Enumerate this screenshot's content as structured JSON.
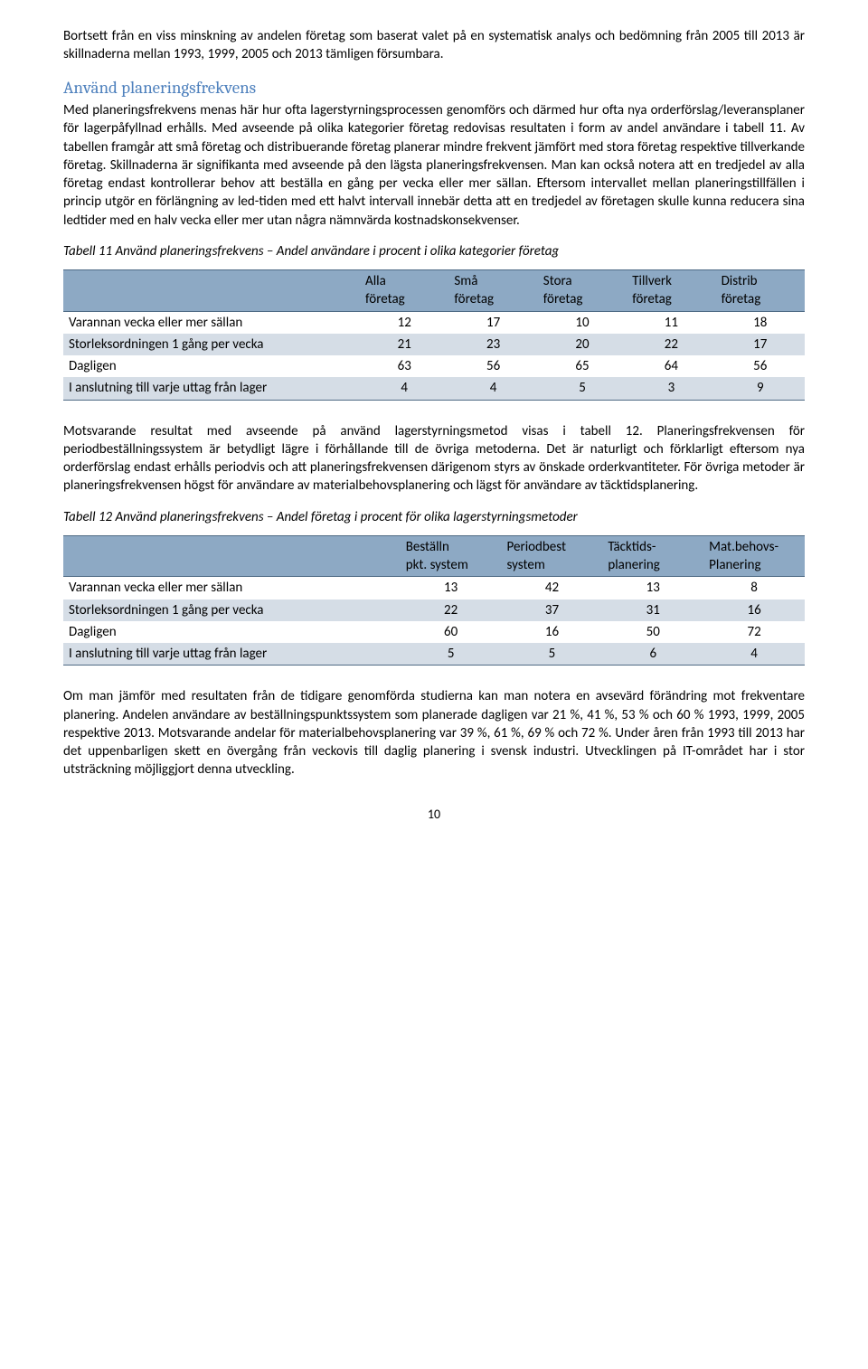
{
  "para_intro": "Bortsett från en viss minskning av andelen företag som baserat valet på en systematisk analys och bedömning från 2005 till 2013 är skillnaderna mellan 1993, 1999, 2005 och 2013 tämligen försumbara.",
  "heading1": "Använd planeringsfrekvens",
  "para1": "Med planeringsfrekvens menas här hur ofta lagerstyrningsprocessen genomförs och därmed hur ofta nya orderförslag/leveransplaner för lagerpåfyllnad erhålls. Med avseende på olika kategorier företag redovisas resultaten i form av andel användare i tabell 11. Av tabellen framgår att små företag och distribuerande företag planerar mindre frekvent jämfört med stora företag respektive tillverkande företag. Skillnaderna är signifikanta med avseende på den lägsta planeringsfrekvensen. Man kan också notera att en tredjedel av alla företag endast kontrollerar behov att beställa en gång per vecka eller mer sällan. Eftersom intervallet mellan planeringstillfällen i princip utgör en förlängning av led-tiden med ett halvt intervall innebär detta att en tredjedel av företagen skulle kunna reducera sina ledtider med en halv vecka eller mer utan några nämnvärda kostnadskonsekvenser.",
  "table11": {
    "caption": "Tabell 11 Använd planeringsfrekvens – Andel användare i procent i olika kategorier företag",
    "headers": {
      "c0": "",
      "c1a": "Alla",
      "c1b": "företag",
      "c2a": "Små",
      "c2b": "företag",
      "c3a": "Stora",
      "c3b": "företag",
      "c4a": "Tillverk",
      "c4b": "företag",
      "c5a": "Distrib",
      "c5b": "företag"
    },
    "rows": [
      {
        "label": "Varannan vecka eller mer sällan",
        "v": [
          "12",
          "17",
          "10",
          "11",
          "18"
        ]
      },
      {
        "label": "Storleksordningen 1 gång per vecka",
        "v": [
          "21",
          "23",
          "20",
          "22",
          "17"
        ]
      },
      {
        "label": "Dagligen",
        "v": [
          "63",
          "56",
          "65",
          "64",
          "56"
        ]
      },
      {
        "label": "I anslutning till varje uttag från lager",
        "v": [
          "4",
          "4",
          "5",
          "3",
          "9"
        ]
      }
    ],
    "header_bg": "#8da9c4",
    "row_odd_bg": "#d5dde6",
    "row_even_bg": "#ffffff",
    "border_color": "#4f6b85"
  },
  "para2": "Motsvarande resultat med avseende på använd lagerstyrningsmetod visas i tabell 12. Planeringsfrekvensen för periodbeställningssystem är betydligt lägre i förhållande till de övriga metoderna. Det är naturligt och förklarligt eftersom nya orderförslag endast erhålls periodvis och att planeringsfrekvensen därigenom styrs av önskade orderkvantiteter. För övriga metoder är planeringsfrekvensen högst för användare av materialbehovsplanering och lägst för användare av täcktidsplanering.",
  "table12": {
    "caption": "Tabell 12 Använd planeringsfrekvens – Andel företag i procent för olika lagerstyrningsmetoder",
    "headers": {
      "c0": "",
      "c1a": "Beställn",
      "c1b": "pkt. system",
      "c2a": "Periodbest",
      "c2b": "system",
      "c3a": "Täcktids-",
      "c3b": "planering",
      "c4a": "Mat.behovs-",
      "c4b": "Planering"
    },
    "rows": [
      {
        "label": "Varannan vecka eller mer sällan",
        "v": [
          "13",
          "42",
          "13",
          "8"
        ]
      },
      {
        "label": "Storleksordningen 1 gång per vecka",
        "v": [
          "22",
          "37",
          "31",
          "16"
        ]
      },
      {
        "label": "Dagligen",
        "v": [
          "60",
          "16",
          "50",
          "72"
        ]
      },
      {
        "label": "I anslutning till varje uttag från lager",
        "v": [
          "5",
          "5",
          "6",
          "4"
        ]
      }
    ]
  },
  "para3": "Om man jämför med resultaten från de tidigare genomförda studierna kan man notera en avsevärd förändring mot frekventare planering. Andelen användare av beställningspunktssystem som planerade dagligen var 21 %, 41 %, 53 % och 60 % 1993, 1999, 2005 respektive 2013. Motsvarande andelar för materialbehovsplanering var 39 %, 61 %, 69 % och 72 %. Under åren från 1993 till 2013 har det uppenbarligen skett en övergång från veckovis till daglig planering i svensk industri. Utvecklingen på IT-området har i stor utsträckning möjliggjort denna utveckling.",
  "page_number": "10"
}
